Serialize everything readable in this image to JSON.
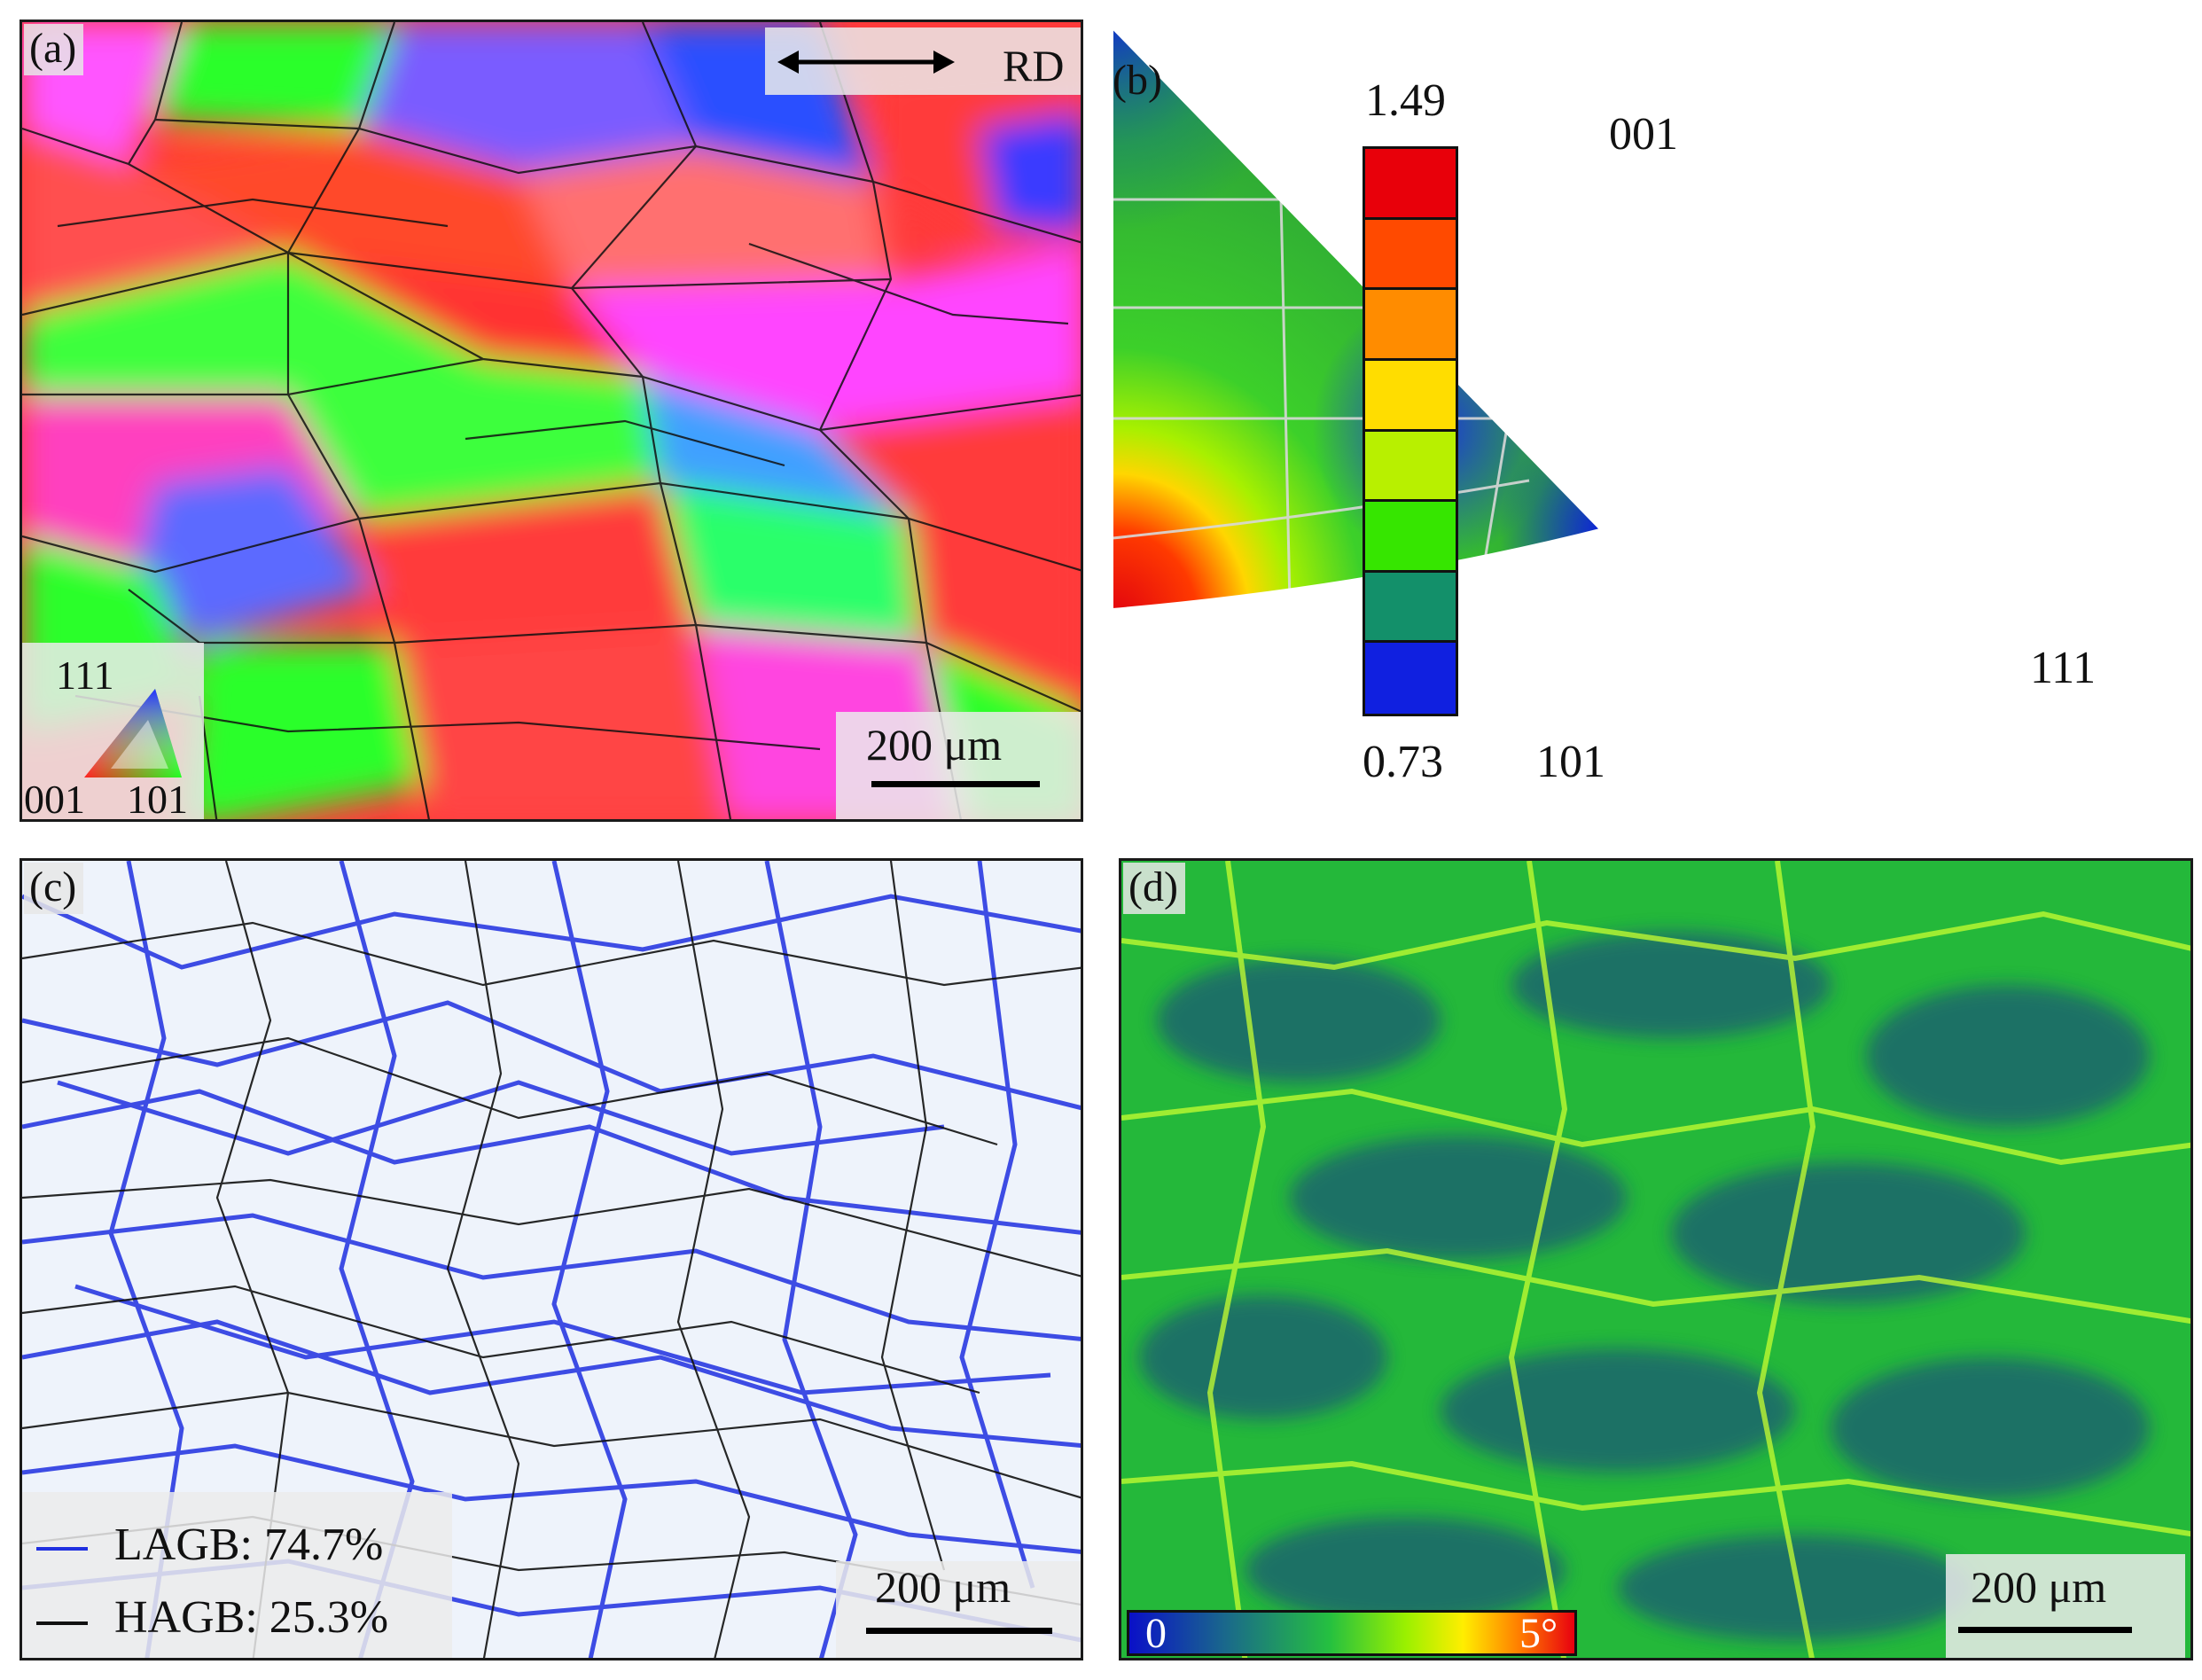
{
  "panels": {
    "a": {
      "label": "(a)",
      "direction_label": "RD",
      "scale_label": "200 μm",
      "ipf_key": {
        "top": "111",
        "left": "001",
        "right": "101"
      }
    },
    "b": {
      "label": "(b)",
      "colorbar": {
        "max": "1.49",
        "min": "0.73",
        "colors": [
          "#e8000a",
          "#ff4a00",
          "#ff8c00",
          "#ffdd00",
          "#b8f000",
          "#36e600",
          "#13906a",
          "#1020e0"
        ]
      },
      "ipf": {
        "corner_001": "001",
        "corner_101": "101",
        "corner_111": "111"
      }
    },
    "c": {
      "label": "(c)",
      "legend": [
        {
          "text": "LAGB: 74.7%",
          "color": "#1f2fe0"
        },
        {
          "text": "HAGB: 25.3%",
          "color": "#111111"
        }
      ],
      "scale_label": "200 μm"
    },
    "d": {
      "label": "(d)",
      "colorbar_min": "0",
      "colorbar_max": "5°",
      "scale_label": "200 μm"
    }
  }
}
